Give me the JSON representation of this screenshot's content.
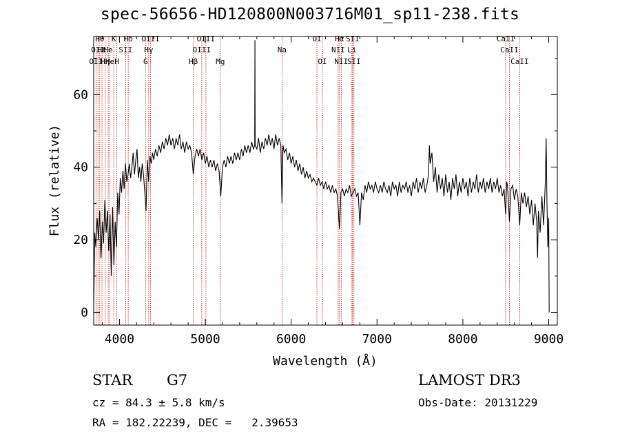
{
  "chart_data": {
    "type": "line",
    "title": "spec-56656-HD120800N003716M01_sp11-238.fits",
    "xlabel": "Wavelength (Å)",
    "ylabel": "Flux (relative)",
    "xlim": [
      3700,
      9100
    ],
    "ylim": [
      -3.5,
      76
    ],
    "x_ticks": [
      4000,
      5000,
      6000,
      7000,
      8000,
      9000
    ],
    "y_ticks": [
      0,
      20,
      40,
      60
    ],
    "line_color": "#000000",
    "marker_color": "#c00000",
    "spectrum": [
      [
        3700,
        0
      ],
      [
        3712,
        22
      ],
      [
        3725,
        18
      ],
      [
        3740,
        26
      ],
      [
        3755,
        20
      ],
      [
        3770,
        28
      ],
      [
        3785,
        15
      ],
      [
        3800,
        25
      ],
      [
        3815,
        19
      ],
      [
        3830,
        31
      ],
      [
        3845,
        22
      ],
      [
        3860,
        28
      ],
      [
        3875,
        17
      ],
      [
        3890,
        27
      ],
      [
        3905,
        10
      ],
      [
        3920,
        29
      ],
      [
        3935,
        13
      ],
      [
        3950,
        25
      ],
      [
        3965,
        18
      ],
      [
        3980,
        33
      ],
      [
        3995,
        27
      ],
      [
        4010,
        37
      ],
      [
        4025,
        33
      ],
      [
        4040,
        39
      ],
      [
        4055,
        34
      ],
      [
        4070,
        41
      ],
      [
        4085,
        36
      ],
      [
        4100,
        38
      ],
      [
        4115,
        41
      ],
      [
        4130,
        37
      ],
      [
        4145,
        40
      ],
      [
        4160,
        44
      ],
      [
        4175,
        38
      ],
      [
        4190,
        42
      ],
      [
        4205,
        45
      ],
      [
        4220,
        37
      ],
      [
        4235,
        40
      ],
      [
        4250,
        36
      ],
      [
        4265,
        41
      ],
      [
        4280,
        38
      ],
      [
        4295,
        33
      ],
      [
        4310,
        28
      ],
      [
        4325,
        42
      ],
      [
        4340,
        36
      ],
      [
        4355,
        43
      ],
      [
        4370,
        41
      ],
      [
        4385,
        44
      ],
      [
        4400,
        42
      ],
      [
        4420,
        45
      ],
      [
        4440,
        43
      ],
      [
        4460,
        46
      ],
      [
        4480,
        44
      ],
      [
        4500,
        47
      ],
      [
        4520,
        45
      ],
      [
        4540,
        48
      ],
      [
        4560,
        46
      ],
      [
        4580,
        49
      ],
      [
        4600,
        46
      ],
      [
        4620,
        48
      ],
      [
        4640,
        45
      ],
      [
        4660,
        48
      ],
      [
        4680,
        46
      ],
      [
        4700,
        49
      ],
      [
        4720,
        45
      ],
      [
        4740,
        47
      ],
      [
        4760,
        44
      ],
      [
        4780,
        47
      ],
      [
        4800,
        45
      ],
      [
        4820,
        46
      ],
      [
        4840,
        44
      ],
      [
        4860,
        38
      ],
      [
        4880,
        43
      ],
      [
        4900,
        45
      ],
      [
        4920,
        43
      ],
      [
        4940,
        45
      ],
      [
        4960,
        42
      ],
      [
        4980,
        44
      ],
      [
        5000,
        41
      ],
      [
        5020,
        43
      ],
      [
        5040,
        40
      ],
      [
        5060,
        42
      ],
      [
        5080,
        40
      ],
      [
        5100,
        42
      ],
      [
        5120,
        39
      ],
      [
        5140,
        41
      ],
      [
        5160,
        39
      ],
      [
        5180,
        32
      ],
      [
        5200,
        40
      ],
      [
        5220,
        42
      ],
      [
        5240,
        40
      ],
      [
        5260,
        43
      ],
      [
        5280,
        41
      ],
      [
        5300,
        43
      ],
      [
        5320,
        41
      ],
      [
        5340,
        44
      ],
      [
        5360,
        42
      ],
      [
        5380,
        44
      ],
      [
        5400,
        42
      ],
      [
        5420,
        45
      ],
      [
        5440,
        43
      ],
      [
        5460,
        46
      ],
      [
        5480,
        44
      ],
      [
        5500,
        46
      ],
      [
        5520,
        44
      ],
      [
        5540,
        47
      ],
      [
        5560,
        45
      ],
      [
        5575,
        46
      ],
      [
        5578,
        75
      ],
      [
        5581,
        46
      ],
      [
        5600,
        45
      ],
      [
        5620,
        48
      ],
      [
        5640,
        44
      ],
      [
        5660,
        47
      ],
      [
        5680,
        45
      ],
      [
        5700,
        48
      ],
      [
        5720,
        46
      ],
      [
        5740,
        49
      ],
      [
        5760,
        46
      ],
      [
        5780,
        48
      ],
      [
        5800,
        45
      ],
      [
        5820,
        49
      ],
      [
        5840,
        46
      ],
      [
        5860,
        48
      ],
      [
        5880,
        46
      ],
      [
        5893,
        30
      ],
      [
        5905,
        46
      ],
      [
        5920,
        44
      ],
      [
        5940,
        45
      ],
      [
        5960,
        42
      ],
      [
        5980,
        44
      ],
      [
        6000,
        41
      ],
      [
        6020,
        43
      ],
      [
        6040,
        40
      ],
      [
        6060,
        42
      ],
      [
        6080,
        39
      ],
      [
        6100,
        41
      ],
      [
        6120,
        38
      ],
      [
        6140,
        40
      ],
      [
        6160,
        37
      ],
      [
        6180,
        39
      ],
      [
        6200,
        37
      ],
      [
        6220,
        38
      ],
      [
        6240,
        36
      ],
      [
        6260,
        37
      ],
      [
        6280,
        36
      ],
      [
        6300,
        35
      ],
      [
        6320,
        37
      ],
      [
        6340,
        35
      ],
      [
        6360,
        36
      ],
      [
        6380,
        34
      ],
      [
        6400,
        36
      ],
      [
        6420,
        34
      ],
      [
        6440,
        35
      ],
      [
        6460,
        33
      ],
      [
        6480,
        35
      ],
      [
        6500,
        33
      ],
      [
        6520,
        34
      ],
      [
        6540,
        32
      ],
      [
        6563,
        23
      ],
      [
        6580,
        33
      ],
      [
        6600,
        34
      ],
      [
        6620,
        32
      ],
      [
        6640,
        34
      ],
      [
        6660,
        33
      ],
      [
        6680,
        35
      ],
      [
        6700,
        32
      ],
      [
        6720,
        33
      ],
      [
        6740,
        34
      ],
      [
        6760,
        32
      ],
      [
        6780,
        33
      ],
      [
        6800,
        24
      ],
      [
        6820,
        33
      ],
      [
        6840,
        31
      ],
      [
        6860,
        35
      ],
      [
        6880,
        33
      ],
      [
        6900,
        36
      ],
      [
        6920,
        34
      ],
      [
        6940,
        35
      ],
      [
        6960,
        33
      ],
      [
        6980,
        36
      ],
      [
        7000,
        34
      ],
      [
        7020,
        33
      ],
      [
        7040,
        35
      ],
      [
        7060,
        33
      ],
      [
        7080,
        36
      ],
      [
        7100,
        34
      ],
      [
        7120,
        33
      ],
      [
        7140,
        35
      ],
      [
        7160,
        32
      ],
      [
        7180,
        36
      ],
      [
        7200,
        34
      ],
      [
        7220,
        35
      ],
      [
        7240,
        32
      ],
      [
        7260,
        36
      ],
      [
        7280,
        33
      ],
      [
        7300,
        35
      ],
      [
        7320,
        34
      ],
      [
        7340,
        36
      ],
      [
        7360,
        33
      ],
      [
        7380,
        35
      ],
      [
        7400,
        32
      ],
      [
        7420,
        36
      ],
      [
        7440,
        34
      ],
      [
        7460,
        37
      ],
      [
        7480,
        33
      ],
      [
        7500,
        36
      ],
      [
        7520,
        34
      ],
      [
        7540,
        37
      ],
      [
        7560,
        33
      ],
      [
        7580,
        35
      ],
      [
        7600,
        38
      ],
      [
        7610,
        46
      ],
      [
        7620,
        41
      ],
      [
        7640,
        44
      ],
      [
        7660,
        36
      ],
      [
        7680,
        40
      ],
      [
        7700,
        33
      ],
      [
        7720,
        38
      ],
      [
        7740,
        34
      ],
      [
        7760,
        37
      ],
      [
        7780,
        32
      ],
      [
        7800,
        38
      ],
      [
        7820,
        33
      ],
      [
        7840,
        36
      ],
      [
        7860,
        31
      ],
      [
        7880,
        37
      ],
      [
        7900,
        34
      ],
      [
        7920,
        38
      ],
      [
        7940,
        32
      ],
      [
        7960,
        36
      ],
      [
        7980,
        33
      ],
      [
        8000,
        37
      ],
      [
        8020,
        34
      ],
      [
        8040,
        36
      ],
      [
        8060,
        32
      ],
      [
        8080,
        37
      ],
      [
        8100,
        33
      ],
      [
        8120,
        36
      ],
      [
        8140,
        34
      ],
      [
        8160,
        38
      ],
      [
        8180,
        33
      ],
      [
        8200,
        36
      ],
      [
        8220,
        34
      ],
      [
        8240,
        37
      ],
      [
        8260,
        33
      ],
      [
        8280,
        36
      ],
      [
        8300,
        34
      ],
      [
        8320,
        37
      ],
      [
        8340,
        33
      ],
      [
        8360,
        36
      ],
      [
        8380,
        34
      ],
      [
        8400,
        37
      ],
      [
        8420,
        33
      ],
      [
        8440,
        35
      ],
      [
        8460,
        32
      ],
      [
        8480,
        34
      ],
      [
        8498,
        27
      ],
      [
        8510,
        36
      ],
      [
        8520,
        35
      ],
      [
        8542,
        25
      ],
      [
        8560,
        34
      ],
      [
        8580,
        35
      ],
      [
        8600,
        31
      ],
      [
        8620,
        34
      ],
      [
        8640,
        32
      ],
      [
        8662,
        24
      ],
      [
        8680,
        33
      ],
      [
        8700,
        30
      ],
      [
        8720,
        33
      ],
      [
        8740,
        29
      ],
      [
        8760,
        32
      ],
      [
        8780,
        27
      ],
      [
        8800,
        31
      ],
      [
        8820,
        24
      ],
      [
        8840,
        30
      ],
      [
        8860,
        25
      ],
      [
        8870,
        15
      ],
      [
        8880,
        28
      ],
      [
        8900,
        22
      ],
      [
        8920,
        32
      ],
      [
        8940,
        24
      ],
      [
        8960,
        36
      ],
      [
        8970,
        48
      ],
      [
        8980,
        30
      ],
      [
        8990,
        18
      ],
      [
        9000,
        26
      ],
      [
        9005,
        0
      ]
    ],
    "line_markers": [
      {
        "wl": 3727,
        "label": "OII",
        "row": 2
      },
      {
        "wl": 3750,
        "label": "OII",
        "row": 1
      },
      {
        "wl": 3771,
        "label": "Hθ",
        "row": 0
      },
      {
        "wl": 3797,
        "label": "Hε",
        "row": 1
      },
      {
        "wl": 3835,
        "label": "Hη",
        "row": 2
      },
      {
        "wl": 3869,
        "label": "He",
        "row": 1
      },
      {
        "wl": 3889,
        "label": "He",
        "row": 2
      },
      {
        "wl": 3934,
        "label": "K",
        "row": 0
      },
      {
        "wl": 3969,
        "label": "H",
        "row": 2
      },
      {
        "wl": 4072,
        "label": "SII",
        "row": 1
      },
      {
        "wl": 4102,
        "label": "Hδ",
        "row": 0
      },
      {
        "wl": 4304,
        "label": "G",
        "row": 2
      },
      {
        "wl": 4341,
        "label": "Hγ",
        "row": 1
      },
      {
        "wl": 4363,
        "label": "OIII",
        "row": 0
      },
      {
        "wl": 4861,
        "label": "Hβ",
        "row": 2
      },
      {
        "wl": 4959,
        "label": "OIII",
        "row": 1
      },
      {
        "wl": 5007,
        "label": "OIII",
        "row": 0
      },
      {
        "wl": 5175,
        "label": "Mg",
        "row": 2
      },
      {
        "wl": 5894,
        "label": "Na",
        "row": 1
      },
      {
        "wl": 6300,
        "label": "OI",
        "row": 0
      },
      {
        "wl": 6364,
        "label": "OI",
        "row": 2
      },
      {
        "wl": 6548,
        "label": "NII",
        "row": 1
      },
      {
        "wl": 6563,
        "label": "Hα",
        "row": 0
      },
      {
        "wl": 6583,
        "label": "NII",
        "row": 2
      },
      {
        "wl": 6708,
        "label": "Li",
        "row": 1
      },
      {
        "wl": 6716,
        "label": "SII",
        "row": 0
      },
      {
        "wl": 6731,
        "label": "SII",
        "row": 2
      },
      {
        "wl": 8498,
        "label": "CaII",
        "row": 0
      },
      {
        "wl": 8542,
        "label": "CaII",
        "row": 1
      },
      {
        "wl": 8662,
        "label": "CaII",
        "row": 2
      }
    ]
  },
  "info": {
    "object_class": "STAR",
    "subclass": "G7",
    "survey": "LAMOST DR3",
    "redshift": "cz = 84.3 ± 5.8 km/s",
    "obs_date": "Obs-Date: 20131229",
    "coords": "RA = 182.22239, DEC =   2.39653"
  }
}
